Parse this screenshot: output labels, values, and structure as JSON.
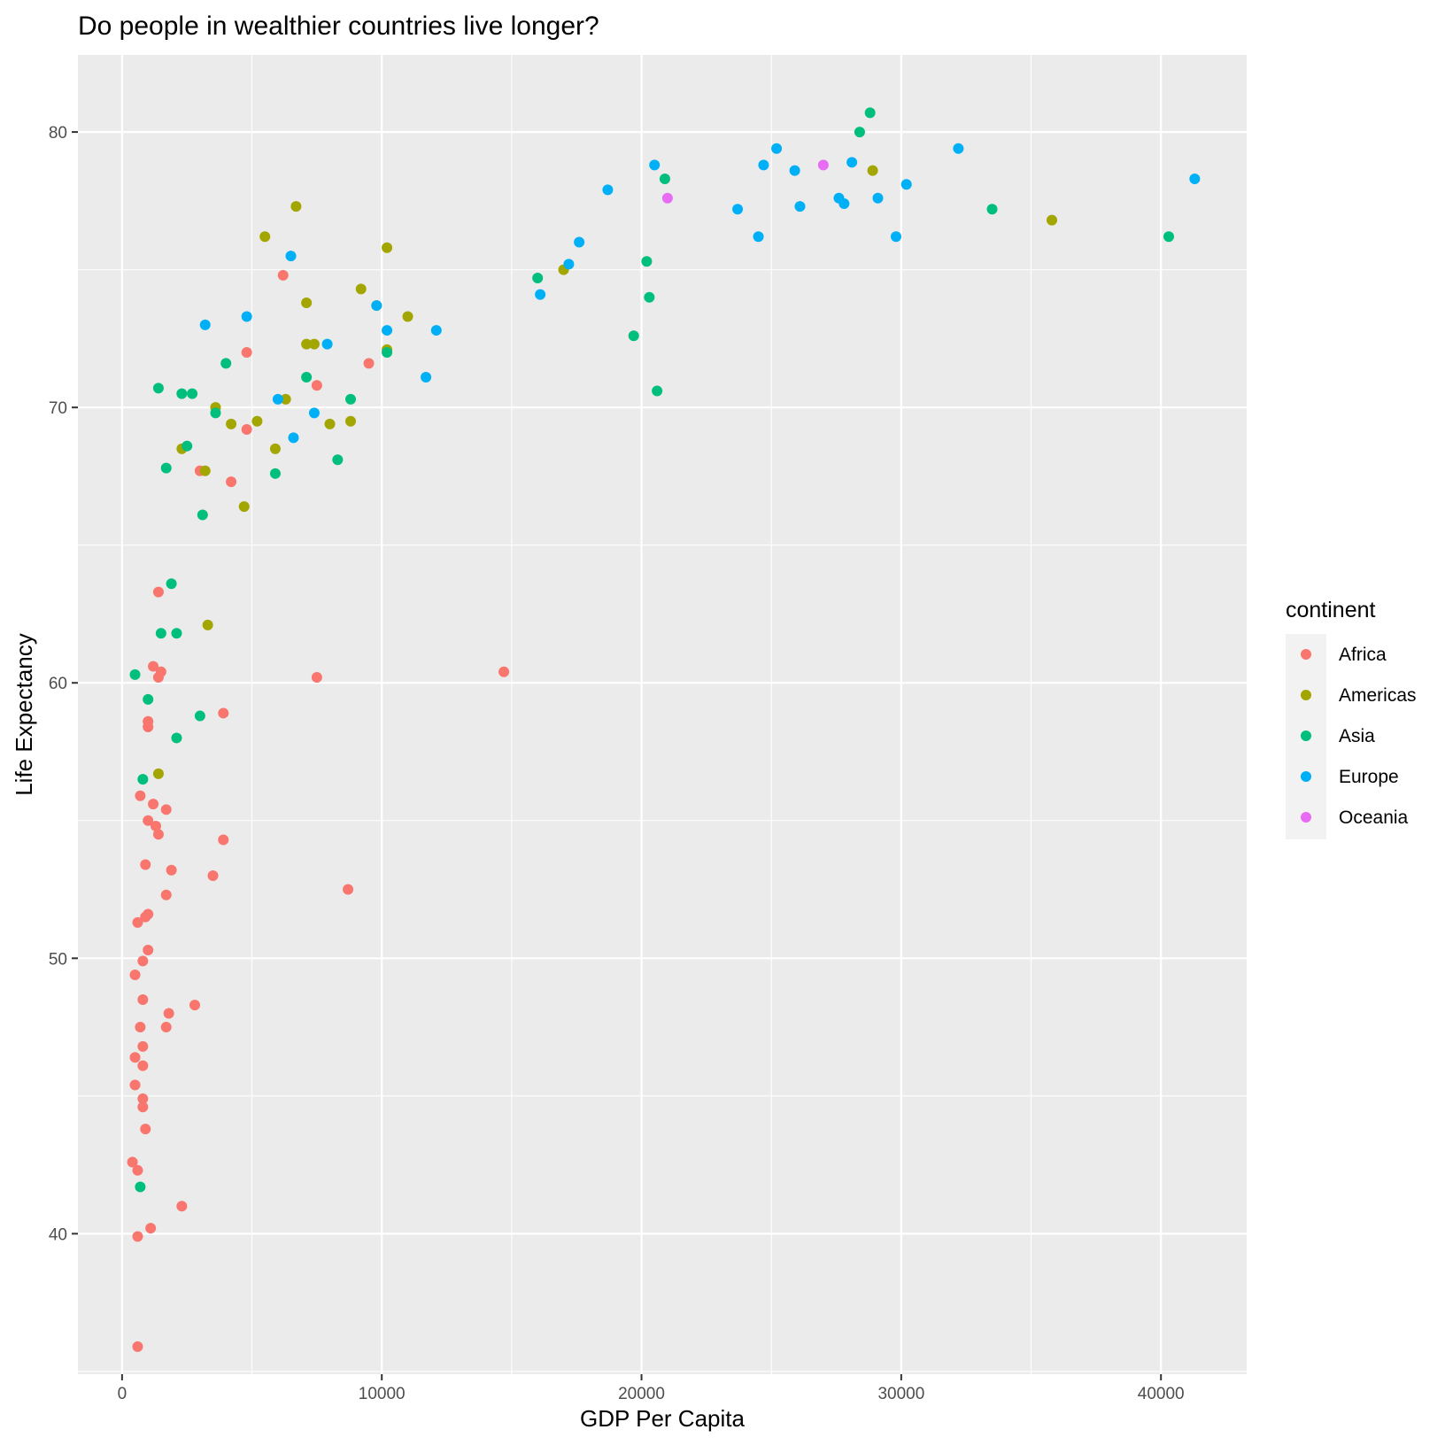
{
  "chart_data": {
    "type": "scatter",
    "title": "Do people in wealthier countries live longer?",
    "xlabel": "GDP Per Capita",
    "ylabel": "Life Expectancy",
    "xlim": [
      -1700,
      43300
    ],
    "ylim": [
      34.9,
      82.8
    ],
    "x_ticks": [
      0,
      10000,
      20000,
      30000,
      40000
    ],
    "x_tick_labels": [
      "0",
      "10000",
      "20000",
      "30000",
      "40000"
    ],
    "y_ticks": [
      40,
      50,
      60,
      70,
      80
    ],
    "y_tick_labels": [
      "40",
      "50",
      "60",
      "70",
      "80"
    ],
    "grid": true,
    "legend_position": "right",
    "legend": {
      "title": "continent",
      "entries": [
        "Africa",
        "Americas",
        "Asia",
        "Europe",
        "Oceania"
      ]
    },
    "colors": {
      "Africa": "#F8766D",
      "Americas": "#A3A500",
      "Asia": "#00BF7D",
      "Europe": "#00B0F6",
      "Oceania": "#E76BF3"
    },
    "series": [
      {
        "name": "Africa",
        "points": [
          [
            6200,
            74.8
          ],
          [
            4800,
            72.0
          ],
          [
            9500,
            71.6
          ],
          [
            7500,
            70.8
          ],
          [
            4800,
            69.2
          ],
          [
            3000,
            67.7
          ],
          [
            4200,
            67.3
          ],
          [
            1400,
            63.3
          ],
          [
            14700,
            60.4
          ],
          [
            7500,
            60.2
          ],
          [
            1200,
            60.6
          ],
          [
            1500,
            60.4
          ],
          [
            1400,
            60.2
          ],
          [
            3900,
            58.9
          ],
          [
            1000,
            58.6
          ],
          [
            1000,
            58.4
          ],
          [
            700,
            55.9
          ],
          [
            1700,
            55.4
          ],
          [
            1200,
            55.6
          ],
          [
            1000,
            55.0
          ],
          [
            1300,
            54.8
          ],
          [
            1400,
            54.5
          ],
          [
            3900,
            54.3
          ],
          [
            900,
            53.4
          ],
          [
            1900,
            53.2
          ],
          [
            3500,
            53.0
          ],
          [
            8700,
            52.5
          ],
          [
            1700,
            52.3
          ],
          [
            1000,
            51.6
          ],
          [
            900,
            51.5
          ],
          [
            600,
            51.3
          ],
          [
            1000,
            50.3
          ],
          [
            800,
            49.9
          ],
          [
            500,
            49.4
          ],
          [
            800,
            48.5
          ],
          [
            2800,
            48.3
          ],
          [
            1800,
            48.0
          ],
          [
            700,
            47.5
          ],
          [
            1700,
            47.5
          ],
          [
            800,
            46.8
          ],
          [
            500,
            46.4
          ],
          [
            800,
            46.1
          ],
          [
            500,
            45.4
          ],
          [
            800,
            44.9
          ],
          [
            800,
            44.6
          ],
          [
            900,
            43.8
          ],
          [
            400,
            42.6
          ],
          [
            600,
            42.3
          ],
          [
            2300,
            41.0
          ],
          [
            1100,
            40.2
          ],
          [
            600,
            39.9
          ],
          [
            600,
            35.9
          ]
        ]
      },
      {
        "name": "Americas",
        "points": [
          [
            6700,
            77.3
          ],
          [
            5500,
            76.2
          ],
          [
            10200,
            75.8
          ],
          [
            17000,
            75.0
          ],
          [
            9200,
            74.3
          ],
          [
            7100,
            73.8
          ],
          [
            9800,
            73.7
          ],
          [
            11000,
            73.3
          ],
          [
            7100,
            72.3
          ],
          [
            7400,
            72.3
          ],
          [
            10200,
            72.1
          ],
          [
            3600,
            70.0
          ],
          [
            5200,
            69.5
          ],
          [
            4200,
            69.4
          ],
          [
            8000,
            69.4
          ],
          [
            8800,
            69.5
          ],
          [
            2300,
            68.5
          ],
          [
            5900,
            68.5
          ],
          [
            3200,
            67.7
          ],
          [
            4700,
            66.4
          ],
          [
            6300,
            70.3
          ],
          [
            3300,
            62.1
          ],
          [
            1400,
            56.7
          ],
          [
            28900,
            78.6
          ],
          [
            35800,
            76.8
          ]
        ]
      },
      {
        "name": "Asia",
        "points": [
          [
            28800,
            80.7
          ],
          [
            28400,
            80.0
          ],
          [
            20900,
            78.3
          ],
          [
            33500,
            77.2
          ],
          [
            40300,
            76.2
          ],
          [
            20200,
            75.3
          ],
          [
            16000,
            74.7
          ],
          [
            20300,
            74.0
          ],
          [
            19700,
            72.6
          ],
          [
            10200,
            72.0
          ],
          [
            4000,
            71.6
          ],
          [
            7100,
            71.1
          ],
          [
            1400,
            70.7
          ],
          [
            2300,
            70.5
          ],
          [
            2700,
            70.5
          ],
          [
            20600,
            70.6
          ],
          [
            8800,
            70.3
          ],
          [
            3600,
            69.8
          ],
          [
            2500,
            68.6
          ],
          [
            8300,
            68.1
          ],
          [
            1700,
            67.8
          ],
          [
            5900,
            67.6
          ],
          [
            3100,
            66.1
          ],
          [
            1900,
            63.6
          ],
          [
            1500,
            61.8
          ],
          [
            2100,
            61.8
          ],
          [
            500,
            60.3
          ],
          [
            1000,
            59.4
          ],
          [
            3000,
            58.8
          ],
          [
            2100,
            58.0
          ],
          [
            800,
            56.5
          ],
          [
            700,
            41.7
          ]
        ]
      },
      {
        "name": "Europe",
        "points": [
          [
            25200,
            79.4
          ],
          [
            32200,
            79.4
          ],
          [
            20500,
            78.8
          ],
          [
            24700,
            78.8
          ],
          [
            28100,
            78.9
          ],
          [
            25900,
            78.6
          ],
          [
            41300,
            78.3
          ],
          [
            18700,
            77.9
          ],
          [
            30200,
            78.1
          ],
          [
            27600,
            77.6
          ],
          [
            29100,
            77.6
          ],
          [
            27800,
            77.4
          ],
          [
            26100,
            77.3
          ],
          [
            23700,
            77.2
          ],
          [
            24500,
            76.2
          ],
          [
            29800,
            76.2
          ],
          [
            17600,
            76.0
          ],
          [
            6500,
            75.5
          ],
          [
            17200,
            75.2
          ],
          [
            16100,
            74.1
          ],
          [
            9800,
            73.7
          ],
          [
            4800,
            73.3
          ],
          [
            3200,
            73.0
          ],
          [
            10200,
            72.8
          ],
          [
            12100,
            72.8
          ],
          [
            7900,
            72.3
          ],
          [
            11700,
            71.1
          ],
          [
            6000,
            70.3
          ],
          [
            7400,
            69.8
          ],
          [
            6600,
            68.9
          ]
        ]
      },
      {
        "name": "Oceania",
        "points": [
          [
            27000,
            78.8
          ],
          [
            21000,
            77.6
          ]
        ]
      }
    ]
  }
}
